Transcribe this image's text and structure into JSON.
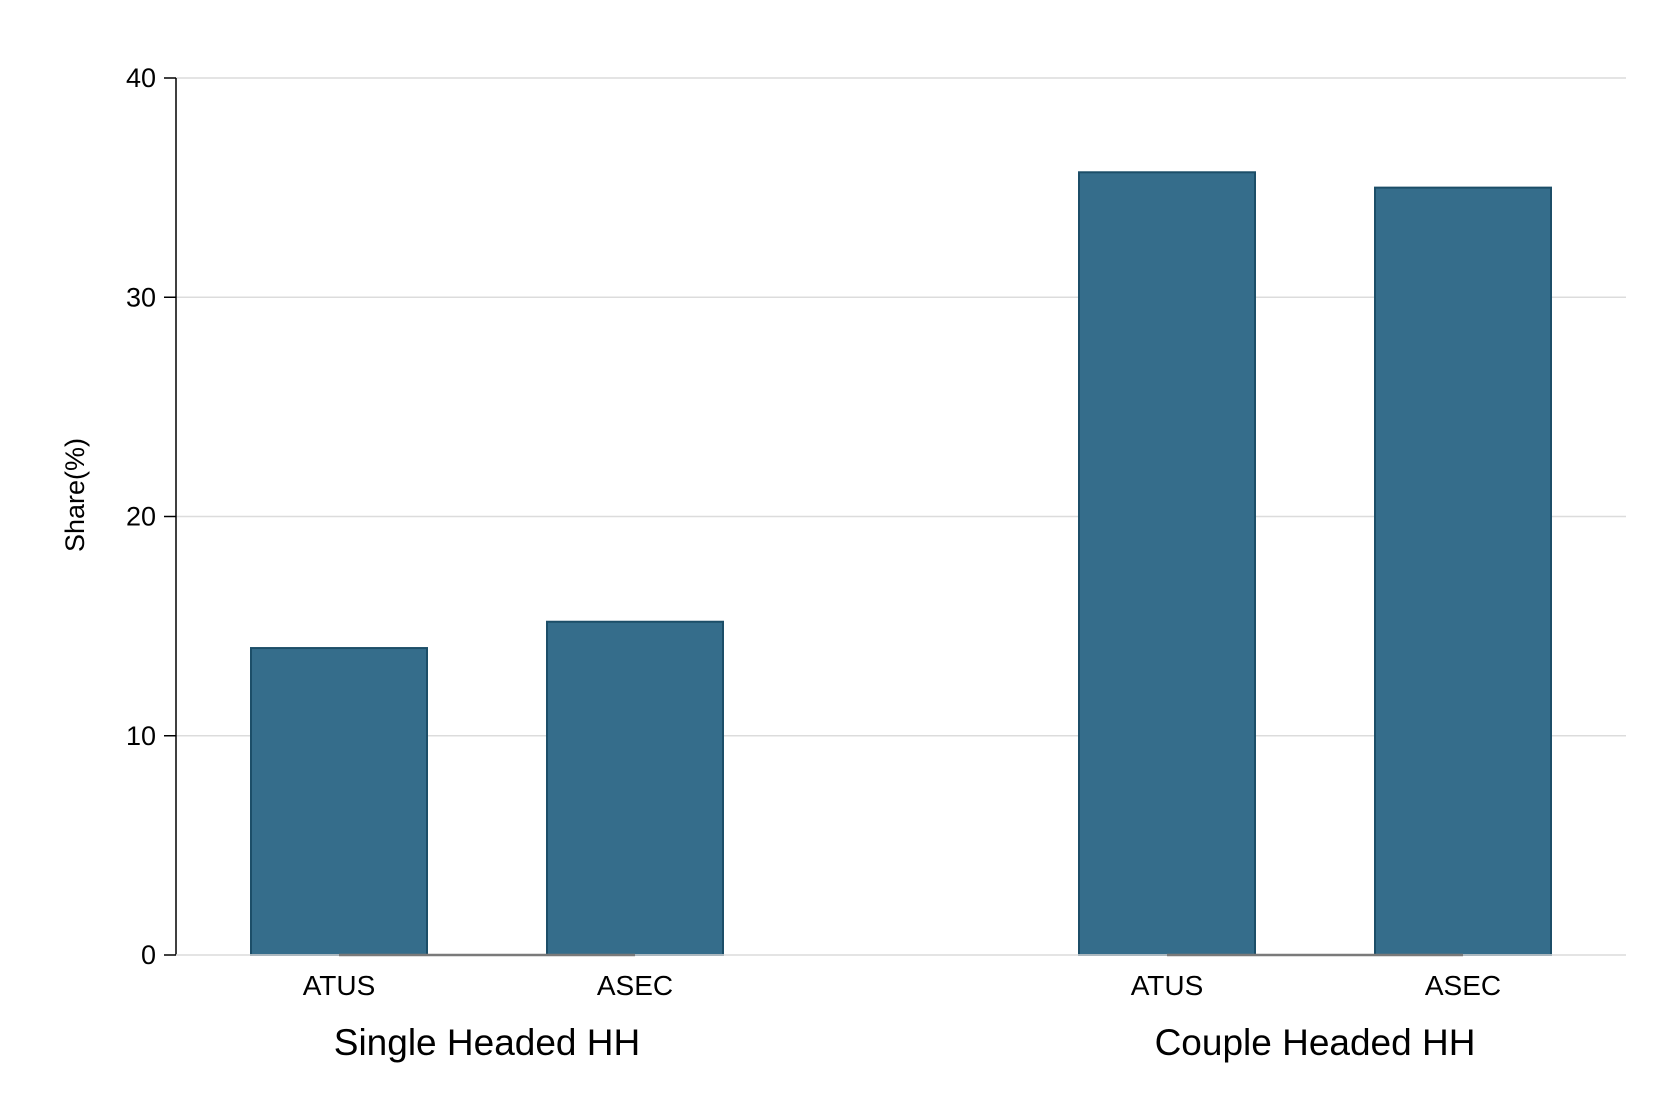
{
  "chart_data": {
    "type": "bar",
    "title": "",
    "xlabel": "",
    "ylabel": "Share(%)",
    "ylim": [
      0,
      40
    ],
    "yticks": [
      0,
      10,
      20,
      30,
      40
    ],
    "grid": true,
    "bar_color": "#356D8B",
    "bar_edge_color": "#1C4E68",
    "groups": [
      {
        "label": "Single Headed HH",
        "bars": [
          {
            "label": "ATUS",
            "value": 14.0
          },
          {
            "label": "ASEC",
            "value": 15.2
          }
        ]
      },
      {
        "label": "Couple Headed HH",
        "bars": [
          {
            "label": "ATUS",
            "value": 35.7
          },
          {
            "label": "ASEC",
            "value": 35.0
          }
        ]
      }
    ]
  }
}
